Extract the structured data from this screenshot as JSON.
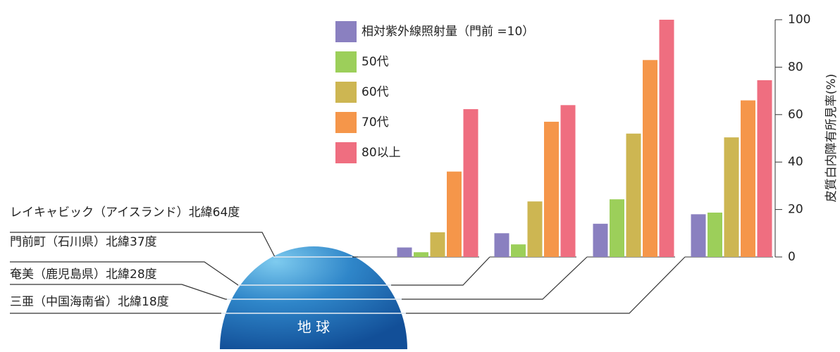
{
  "chart_data": {
    "type": "bar",
    "categories": [
      "レイキャビック（アイスランド）北緯64度",
      "門前町（石川県）北緯37度",
      "奄美（鹿児島県）北緯28度",
      "三亜（中国海南省）北緯18度"
    ],
    "series": [
      {
        "name": "相対紫外線照射量（門前 =10）",
        "color": "#8a80c0",
        "values": [
          4,
          10,
          14,
          18
        ]
      },
      {
        "name": "50代",
        "color": "#9ccf5a",
        "values": [
          2,
          5.3,
          24.3,
          18.7
        ]
      },
      {
        "name": "60代",
        "color": "#cdb652",
        "values": [
          10.4,
          23.4,
          52,
          50.4
        ]
      },
      {
        "name": "70代",
        "color": "#f5964a",
        "values": [
          36,
          57,
          83,
          66
        ]
      },
      {
        "name": "80以上",
        "color": "#ef6e80",
        "values": [
          62.3,
          64,
          100,
          74.5
        ]
      }
    ],
    "y_label": "皮質白内障有所見率(%)",
    "ylim": [
      0,
      100
    ],
    "yticks": [
      0,
      20,
      40,
      60,
      80,
      100
    ],
    "annotations": [
      "地 球"
    ]
  }
}
